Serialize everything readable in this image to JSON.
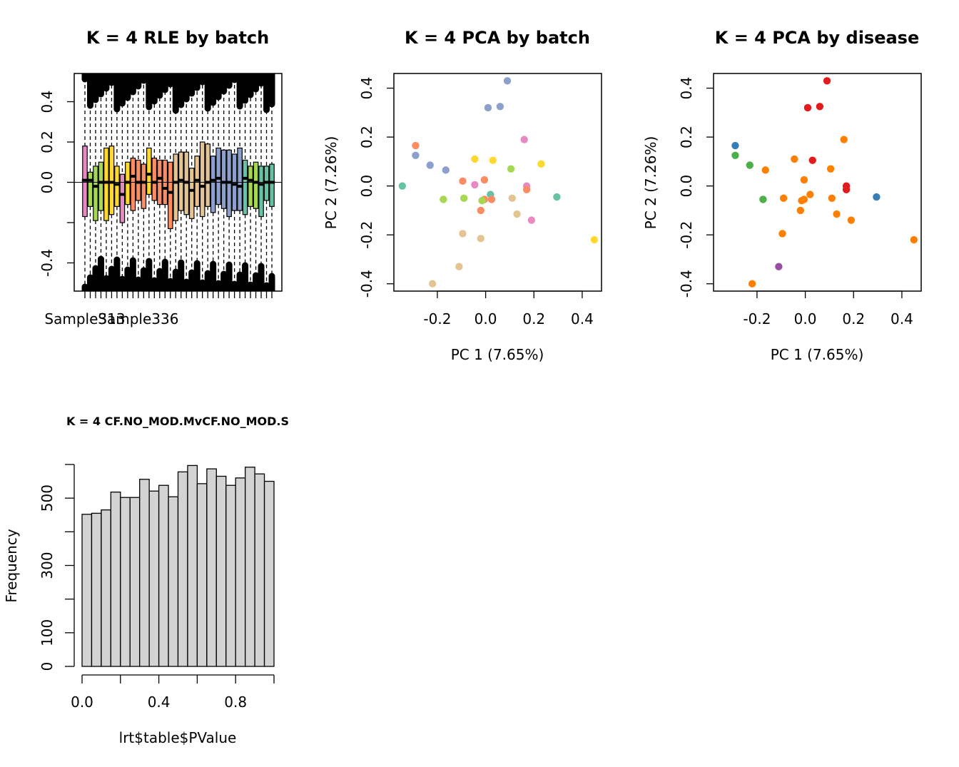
{
  "colors": {
    "batch_palette": [
      "#E78AC3",
      "#A6D854",
      "#FFD92F",
      "#FC8D62",
      "#E5C494",
      "#8DA0CB",
      "#66C2A5"
    ],
    "disease_palette": [
      "#E41A1C",
      "#377EB8",
      "#4DAF4A",
      "#984EA3",
      "#FF7F00"
    ],
    "hist_fill": "#D3D3D3"
  },
  "chart_data": [
    {
      "type": "boxplot",
      "title": "K = 4 RLE by batch",
      "xlabel": "",
      "ylabel": "",
      "ylim": [
        -0.54,
        0.54
      ],
      "yticks": [
        -0.4,
        -0.2,
        0.0,
        0.2,
        0.4
      ],
      "ytick_labels": [
        "-0.4",
        "",
        "0.0",
        "0.2",
        "0.4"
      ],
      "xtick_labels": [
        {
          "index": 0,
          "label": "Sample313"
        },
        {
          "index": 10,
          "label": "Sample336"
        }
      ],
      "boxes": [
        {
          "batch": 0,
          "q1": -0.17,
          "median": 0.01,
          "q3": 0.18
        },
        {
          "batch": 1,
          "q1": -0.12,
          "median": 0.01,
          "q3": 0.05
        },
        {
          "batch": 1,
          "q1": -0.19,
          "median": -0.02,
          "q3": 0.08
        },
        {
          "batch": 1,
          "q1": -0.14,
          "median": 0.0,
          "q3": 0.1
        },
        {
          "batch": 2,
          "q1": -0.19,
          "median": 0.0,
          "q3": 0.17
        },
        {
          "batch": 2,
          "q1": -0.16,
          "median": 0.0,
          "q3": 0.18
        },
        {
          "batch": 2,
          "q1": -0.12,
          "median": -0.01,
          "q3": 0.08
        },
        {
          "batch": 0,
          "q1": -0.2,
          "median": -0.06,
          "q3": 0.04
        },
        {
          "batch": 2,
          "q1": -0.11,
          "median": 0.0,
          "q3": 0.1
        },
        {
          "batch": 3,
          "q1": -0.14,
          "median": 0.03,
          "q3": 0.12
        },
        {
          "batch": 3,
          "q1": -0.09,
          "median": 0.0,
          "q3": 0.11
        },
        {
          "batch": 3,
          "q1": -0.13,
          "median": 0.0,
          "q3": 0.09
        },
        {
          "batch": 2,
          "q1": -0.06,
          "median": 0.04,
          "q3": 0.17
        },
        {
          "batch": 3,
          "q1": -0.09,
          "median": 0.0,
          "q3": 0.12
        },
        {
          "batch": 3,
          "q1": -0.11,
          "median": 0.02,
          "q3": 0.11
        },
        {
          "batch": 3,
          "q1": -0.11,
          "median": -0.03,
          "q3": 0.11
        },
        {
          "batch": 3,
          "q1": -0.23,
          "median": -0.05,
          "q3": 0.1
        },
        {
          "batch": 4,
          "q1": -0.19,
          "median": 0.0,
          "q3": 0.14
        },
        {
          "batch": 4,
          "q1": -0.14,
          "median": 0.01,
          "q3": 0.15
        },
        {
          "batch": 4,
          "q1": -0.16,
          "median": 0.0,
          "q3": 0.15
        },
        {
          "batch": 4,
          "q1": -0.18,
          "median": -0.04,
          "q3": 0.07
        },
        {
          "batch": 4,
          "q1": -0.12,
          "median": 0.01,
          "q3": 0.13
        },
        {
          "batch": 4,
          "q1": -0.17,
          "median": -0.02,
          "q3": 0.2
        },
        {
          "batch": 4,
          "q1": -0.12,
          "median": 0.0,
          "q3": 0.19
        },
        {
          "batch": 5,
          "q1": -0.15,
          "median": 0.01,
          "q3": 0.13
        },
        {
          "batch": 5,
          "q1": -0.11,
          "median": 0.02,
          "q3": 0.17
        },
        {
          "batch": 5,
          "q1": -0.13,
          "median": 0.0,
          "q3": 0.16
        },
        {
          "batch": 5,
          "q1": -0.17,
          "median": 0.0,
          "q3": 0.16
        },
        {
          "batch": 5,
          "q1": -0.14,
          "median": -0.01,
          "q3": 0.14
        },
        {
          "batch": 5,
          "q1": -0.14,
          "median": -0.02,
          "q3": 0.17
        },
        {
          "batch": 6,
          "q1": -0.16,
          "median": 0.02,
          "q3": 0.11
        },
        {
          "batch": 1,
          "q1": -0.12,
          "median": 0.01,
          "q3": 0.08
        },
        {
          "batch": 1,
          "q1": -0.13,
          "median": 0.0,
          "q3": 0.1
        },
        {
          "batch": 6,
          "q1": -0.17,
          "median": -0.01,
          "q3": 0.08
        },
        {
          "batch": 6,
          "q1": -0.09,
          "median": 0.0,
          "q3": 0.08
        },
        {
          "batch": 6,
          "q1": -0.12,
          "median": 0.0,
          "q3": 0.09
        }
      ]
    },
    {
      "type": "scatter",
      "title": "K = 4 PCA by batch",
      "xlabel": "PC 1 (7.65%)",
      "ylabel": "PC 2 (7.26%)",
      "xlim": [
        -0.38,
        0.48
      ],
      "ylim": [
        -0.43,
        0.46
      ],
      "xticks": [
        -0.2,
        0.0,
        0.2,
        0.4
      ],
      "xtick_labels": [
        "-0.2",
        "0.0",
        "0.2",
        "0.4"
      ],
      "yticks": [
        -0.4,
        -0.2,
        0.0,
        0.2,
        0.4
      ],
      "ytick_labels": [
        "-0.4",
        "-0.2",
        "0.0",
        "0.2",
        "0.4"
      ],
      "color_by": "batch",
      "points": [
        {
          "x": 0.09,
          "y": 0.43,
          "group": 5
        },
        {
          "x": 0.01,
          "y": 0.32,
          "group": 5
        },
        {
          "x": 0.06,
          "y": 0.325,
          "group": 5
        },
        {
          "x": -0.29,
          "y": 0.165,
          "group": 3
        },
        {
          "x": -0.29,
          "y": 0.125,
          "group": 5
        },
        {
          "x": -0.23,
          "y": 0.085,
          "group": 5
        },
        {
          "x": -0.165,
          "y": 0.065,
          "group": 5
        },
        {
          "x": -0.045,
          "y": 0.11,
          "group": 2
        },
        {
          "x": 0.03,
          "y": 0.105,
          "group": 2
        },
        {
          "x": 0.16,
          "y": 0.19,
          "group": 0
        },
        {
          "x": 0.23,
          "y": 0.09,
          "group": 2
        },
        {
          "x": 0.105,
          "y": 0.07,
          "group": 1
        },
        {
          "x": -0.095,
          "y": 0.02,
          "group": 3
        },
        {
          "x": -0.045,
          "y": 0.005,
          "group": 0
        },
        {
          "x": -0.005,
          "y": 0.025,
          "group": 3
        },
        {
          "x": 0.17,
          "y": 0.0,
          "group": 0
        },
        {
          "x": 0.17,
          "y": -0.015,
          "group": 3
        },
        {
          "x": -0.345,
          "y": 0.0,
          "group": 6
        },
        {
          "x": -0.175,
          "y": -0.055,
          "group": 1
        },
        {
          "x": -0.09,
          "y": -0.05,
          "group": 1
        },
        {
          "x": 0.02,
          "y": -0.035,
          "group": 6
        },
        {
          "x": 0.025,
          "y": -0.055,
          "group": 3
        },
        {
          "x": -0.005,
          "y": -0.055,
          "group": 3
        },
        {
          "x": -0.015,
          "y": -0.06,
          "group": 1
        },
        {
          "x": 0.11,
          "y": -0.05,
          "group": 4
        },
        {
          "x": 0.295,
          "y": -0.045,
          "group": 6
        },
        {
          "x": -0.02,
          "y": -0.1,
          "group": 3
        },
        {
          "x": 0.13,
          "y": -0.115,
          "group": 4
        },
        {
          "x": 0.19,
          "y": -0.14,
          "group": 0
        },
        {
          "x": -0.095,
          "y": -0.195,
          "group": 4
        },
        {
          "x": -0.02,
          "y": -0.215,
          "group": 4
        },
        {
          "x": 0.45,
          "y": -0.22,
          "group": 2
        },
        {
          "x": -0.11,
          "y": -0.33,
          "group": 4
        },
        {
          "x": -0.22,
          "y": -0.4,
          "group": 4
        }
      ]
    },
    {
      "type": "scatter",
      "title": "K = 4 PCA by disease",
      "xlabel": "PC 1 (7.65%)",
      "ylabel": "PC 2 (7.26%)",
      "xlim": [
        -0.38,
        0.48
      ],
      "ylim": [
        -0.43,
        0.46
      ],
      "xticks": [
        -0.2,
        0.0,
        0.2,
        0.4
      ],
      "xtick_labels": [
        "-0.2",
        "0.0",
        "0.2",
        "0.4"
      ],
      "yticks": [
        -0.4,
        -0.2,
        0.0,
        0.2,
        0.4
      ],
      "ytick_labels": [
        "-0.4",
        "-0.2",
        "0.0",
        "0.2",
        "0.4"
      ],
      "color_by": "disease",
      "points": [
        {
          "x": 0.09,
          "y": 0.43,
          "group": 0
        },
        {
          "x": 0.01,
          "y": 0.32,
          "group": 0
        },
        {
          "x": 0.06,
          "y": 0.325,
          "group": 0
        },
        {
          "x": -0.29,
          "y": 0.165,
          "group": 1
        },
        {
          "x": -0.29,
          "y": 0.125,
          "group": 2
        },
        {
          "x": -0.23,
          "y": 0.085,
          "group": 2
        },
        {
          "x": -0.165,
          "y": 0.065,
          "group": 4
        },
        {
          "x": -0.045,
          "y": 0.11,
          "group": 4
        },
        {
          "x": 0.03,
          "y": 0.105,
          "group": 0
        },
        {
          "x": 0.16,
          "y": 0.19,
          "group": 4
        },
        {
          "x": 0.105,
          "y": 0.07,
          "group": 4
        },
        {
          "x": -0.005,
          "y": 0.025,
          "group": 4
        },
        {
          "x": 0.17,
          "y": 0.0,
          "group": 0
        },
        {
          "x": 0.17,
          "y": -0.015,
          "group": 0
        },
        {
          "x": -0.175,
          "y": -0.055,
          "group": 2
        },
        {
          "x": -0.09,
          "y": -0.05,
          "group": 4
        },
        {
          "x": 0.02,
          "y": -0.035,
          "group": 4
        },
        {
          "x": -0.005,
          "y": -0.055,
          "group": 4
        },
        {
          "x": -0.015,
          "y": -0.06,
          "group": 4
        },
        {
          "x": 0.11,
          "y": -0.05,
          "group": 4
        },
        {
          "x": 0.295,
          "y": -0.045,
          "group": 1
        },
        {
          "x": -0.02,
          "y": -0.1,
          "group": 4
        },
        {
          "x": 0.13,
          "y": -0.115,
          "group": 4
        },
        {
          "x": 0.19,
          "y": -0.14,
          "group": 4
        },
        {
          "x": -0.095,
          "y": -0.195,
          "group": 4
        },
        {
          "x": 0.45,
          "y": -0.22,
          "group": 4
        },
        {
          "x": -0.11,
          "y": -0.33,
          "group": 3
        },
        {
          "x": -0.22,
          "y": -0.4,
          "group": 4
        }
      ]
    },
    {
      "type": "bar",
      "title": "K = 4 CF.NO_MOD.MvCF.NO_MOD.S",
      "xlabel": "lrt$table$PValue",
      "ylabel": "Frequency",
      "bins_start": 0.0,
      "bin_width": 0.05,
      "values": [
        452,
        455,
        465,
        518,
        502,
        502,
        556,
        521,
        538,
        504,
        578,
        597,
        543,
        587,
        565,
        538,
        560,
        592,
        572,
        550
      ],
      "ylim": [
        0,
        600
      ],
      "yticks": [
        0,
        100,
        200,
        300,
        400,
        500,
        600
      ],
      "ytick_labels": [
        "0",
        "100",
        "",
        "300",
        "",
        "500",
        ""
      ],
      "xticks": [
        0.0,
        0.2,
        0.4,
        0.6,
        0.8,
        1.0
      ],
      "xtick_labels": [
        "0.0",
        "",
        "0.4",
        "",
        "0.8",
        ""
      ]
    }
  ]
}
